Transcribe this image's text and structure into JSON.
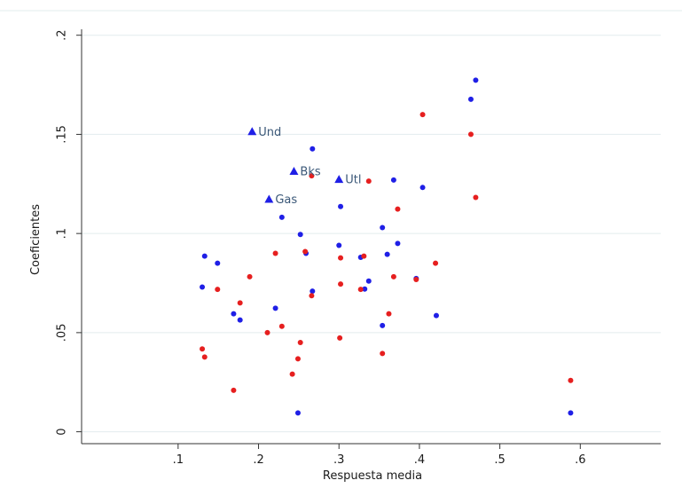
{
  "chart_data": {
    "type": "scatter",
    "xlabel": "Respuesta media",
    "ylabel": "Coeficientes",
    "xlim": [
      -0.02,
      0.7
    ],
    "ylim": [
      -0.006,
      0.203
    ],
    "xticks": [
      {
        "value": 0.1,
        "label": ".1"
      },
      {
        "value": 0.2,
        "label": ".2"
      },
      {
        "value": 0.3,
        "label": ".3"
      },
      {
        "value": 0.4,
        "label": ".4"
      },
      {
        "value": 0.5,
        "label": ".5"
      },
      {
        "value": 0.6,
        "label": ".6"
      }
    ],
    "yticks": [
      0,
      {
        "value": 0.05,
        "label": ".05"
      },
      {
        "value": 0.1,
        "label": ".1"
      },
      {
        "value": 0.15,
        "label": ".15"
      },
      {
        "value": 0.2,
        "label": ".2"
      }
    ],
    "grid": true,
    "series": [
      {
        "color": "#1f1fe6",
        "marker": "circle",
        "x": [
          0.133,
          0.149,
          0.13,
          0.169,
          0.177,
          0.221,
          0.229,
          0.267,
          0.267,
          0.252,
          0.259,
          0.249,
          0.302,
          0.3,
          0.327,
          0.332,
          0.337,
          0.354,
          0.36,
          0.354,
          0.373,
          0.368,
          0.396,
          0.404,
          0.421,
          0.464,
          0.47,
          0.588
        ],
        "values": [
          0.0886,
          0.085,
          0.073,
          0.0595,
          0.0564,
          0.0623,
          0.1082,
          0.1427,
          0.0709,
          0.0995,
          0.09,
          0.0095,
          0.1136,
          0.094,
          0.088,
          0.072,
          0.076,
          0.103,
          0.0895,
          0.0536,
          0.095,
          0.127,
          0.0773,
          0.1232,
          0.0586,
          0.1677,
          0.1773,
          0.0095
        ]
      },
      {
        "color": "#e61f1f",
        "marker": "circle",
        "x": [
          0.13,
          0.133,
          0.149,
          0.169,
          0.177,
          0.189,
          0.211,
          0.221,
          0.229,
          0.242,
          0.249,
          0.266,
          0.266,
          0.252,
          0.258,
          0.301,
          0.302,
          0.302,
          0.331,
          0.327,
          0.337,
          0.354,
          0.362,
          0.368,
          0.373,
          0.396,
          0.404,
          0.42,
          0.464,
          0.47,
          0.588
        ],
        "values": [
          0.0418,
          0.0377,
          0.0718,
          0.0209,
          0.065,
          0.0782,
          0.05,
          0.09,
          0.0532,
          0.0291,
          0.0368,
          0.1291,
          0.0686,
          0.045,
          0.0909,
          0.0473,
          0.0745,
          0.0877,
          0.0886,
          0.0718,
          0.1264,
          0.0395,
          0.0595,
          0.0782,
          0.1123,
          0.0768,
          0.16,
          0.085,
          0.15,
          0.1182,
          0.0259
        ]
      },
      {
        "color": "#1f1fe6",
        "marker": "triangle",
        "x": [
          0.192,
          0.244,
          0.3,
          0.213
        ],
        "values": [
          0.1514,
          0.1314,
          0.1273,
          0.1173
        ],
        "labels": [
          "Und",
          "Bks",
          "Utl",
          "Gas"
        ]
      }
    ]
  }
}
